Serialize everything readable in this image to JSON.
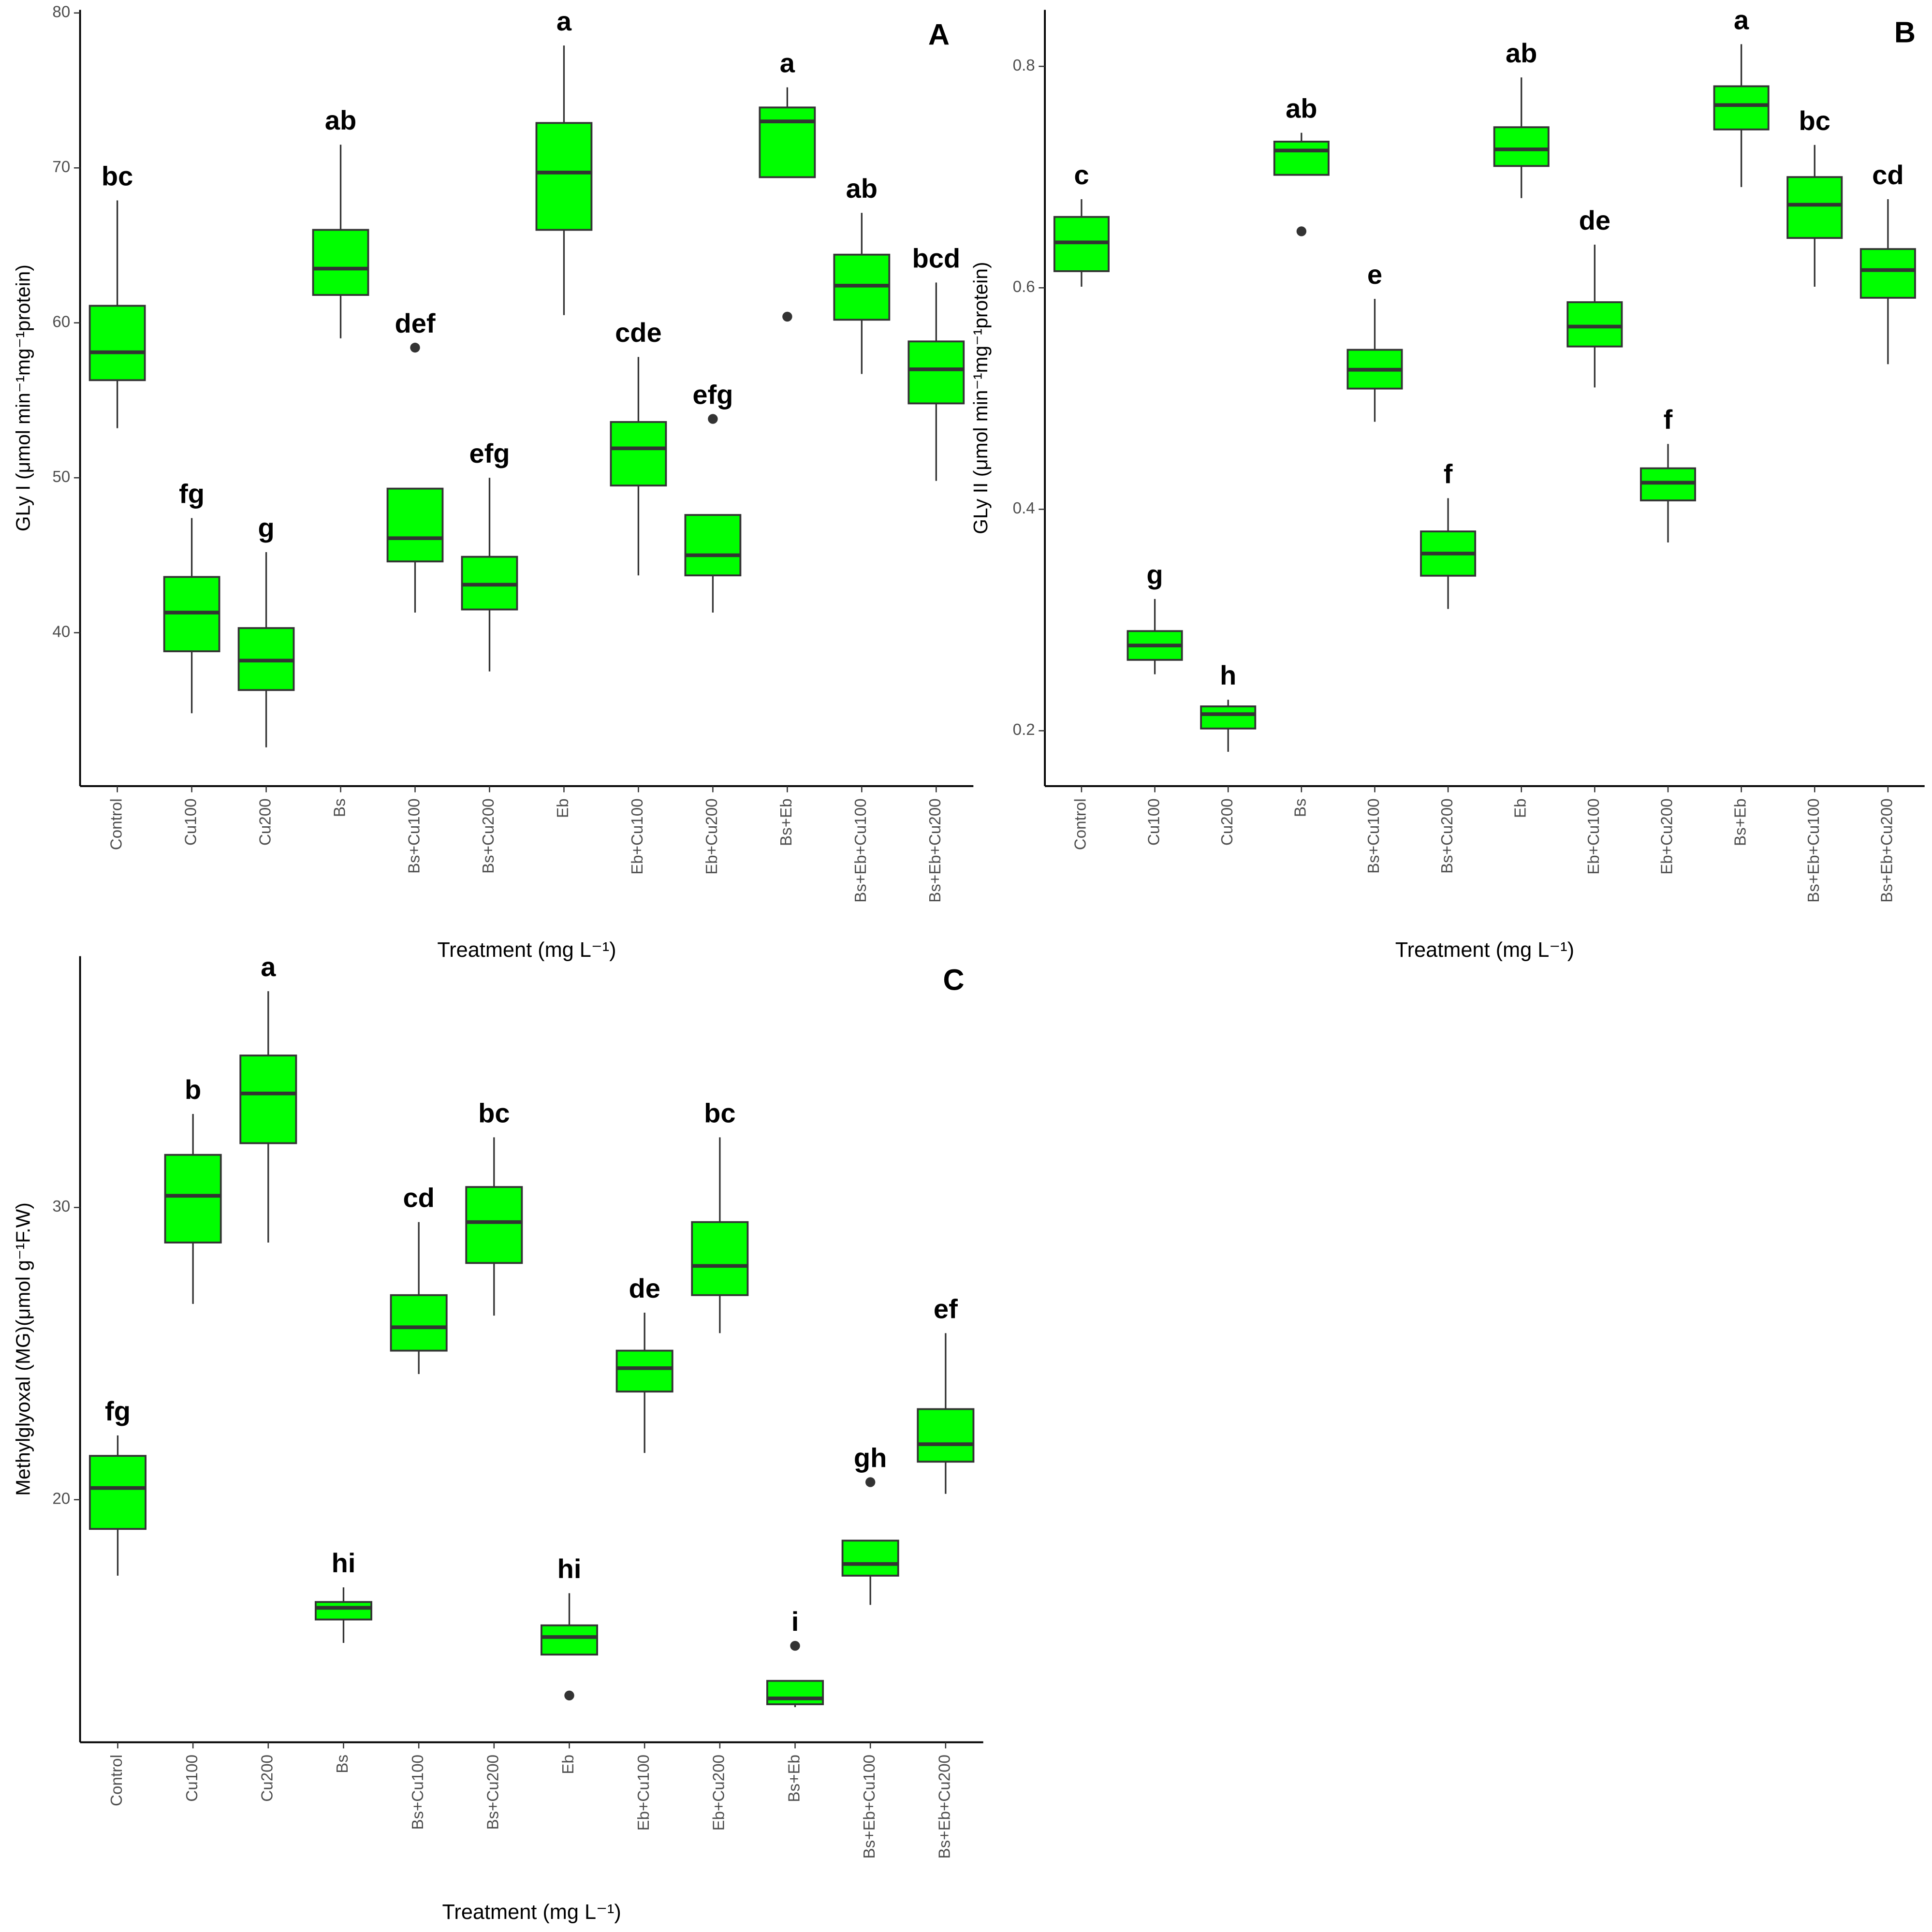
{
  "chart_data": [
    {
      "type": "box",
      "panel": "A",
      "x_label": "Treatment (mg L⁻¹)",
      "y_label": "GLy I (μmol min⁻¹mg⁻¹protein)",
      "color": "#00ff00",
      "categories": [
        "Control",
        "Cu100",
        "Cu200",
        "Bs",
        "Bs+Cu100",
        "Bs+Cu200",
        "Eb",
        "Eb+Cu100",
        "Eb+Cu200",
        "Bs+Eb",
        "Bs+Eb+Cu100",
        "Bs+Eb+Cu200"
      ],
      "boxes": [
        {
          "min": 53.2,
          "q1": 56.3,
          "median": 58.1,
          "q3": 61.1,
          "max": 67.9,
          "outliers": []
        },
        {
          "min": 34.8,
          "q1": 38.8,
          "median": 41.3,
          "q3": 43.6,
          "max": 47.4,
          "outliers": []
        },
        {
          "min": 32.6,
          "q1": 36.3,
          "median": 38.2,
          "q3": 40.3,
          "max": 45.2,
          "outliers": []
        },
        {
          "min": 59.0,
          "q1": 61.8,
          "median": 63.5,
          "q3": 66.0,
          "max": 71.5,
          "outliers": []
        },
        {
          "min": 41.3,
          "q1": 44.6,
          "median": 46.1,
          "q3": 49.3,
          "max": 49.3,
          "outliers": [
            58.4
          ]
        },
        {
          "min": 37.5,
          "q1": 41.5,
          "median": 43.1,
          "q3": 44.9,
          "max": 50.0,
          "outliers": []
        },
        {
          "min": 60.5,
          "q1": 66.0,
          "median": 69.7,
          "q3": 72.9,
          "max": 77.9,
          "outliers": []
        },
        {
          "min": 43.7,
          "q1": 49.5,
          "median": 51.9,
          "q3": 53.6,
          "max": 57.8,
          "outliers": []
        },
        {
          "min": 41.3,
          "q1": 43.7,
          "median": 45.0,
          "q3": 47.6,
          "max": 47.6,
          "outliers": [
            53.8
          ]
        },
        {
          "min": 69.4,
          "q1": 69.4,
          "median": 73.0,
          "q3": 73.9,
          "max": 75.2,
          "outliers": [
            60.4
          ]
        },
        {
          "min": 56.7,
          "q1": 60.2,
          "median": 62.4,
          "q3": 64.4,
          "max": 67.1,
          "outliers": []
        },
        {
          "min": 49.8,
          "q1": 54.8,
          "median": 57.0,
          "q3": 58.8,
          "max": 62.6,
          "outliers": []
        }
      ],
      "letters": [
        "bc",
        "fg",
        "g",
        "ab",
        "def",
        "efg",
        "a",
        "cde",
        "efg",
        "a",
        "ab",
        "bcd"
      ],
      "ylim": [
        30.1,
        80.2
      ],
      "yticks": [
        40,
        50,
        60,
        70,
        80
      ]
    },
    {
      "type": "box",
      "panel": "B",
      "x_label": "Treatment (mg L⁻¹)",
      "y_label": "GLy II (μmol min⁻¹mg⁻¹protein)",
      "color": "#00ff00",
      "categories": [
        "Control",
        "Cu100",
        "Cu200",
        "Bs",
        "Bs+Cu100",
        "Bs+Cu200",
        "Eb",
        "Eb+Cu100",
        "Eb+Cu200",
        "Bs+Eb",
        "Bs+Eb+Cu100",
        "Bs+Eb+Cu200"
      ],
      "boxes": [
        {
          "min": 0.601,
          "q1": 0.615,
          "median": 0.641,
          "q3": 0.664,
          "max": 0.68,
          "outliers": []
        },
        {
          "min": 0.251,
          "q1": 0.264,
          "median": 0.277,
          "q3": 0.29,
          "max": 0.319,
          "outliers": []
        },
        {
          "min": 0.181,
          "q1": 0.202,
          "median": 0.215,
          "q3": 0.222,
          "max": 0.228,
          "outliers": []
        },
        {
          "min": 0.702,
          "q1": 0.702,
          "median": 0.724,
          "q3": 0.732,
          "max": 0.74,
          "outliers": [
            0.651
          ]
        },
        {
          "min": 0.479,
          "q1": 0.509,
          "median": 0.526,
          "q3": 0.544,
          "max": 0.59,
          "outliers": []
        },
        {
          "min": 0.31,
          "q1": 0.34,
          "median": 0.36,
          "q3": 0.38,
          "max": 0.41,
          "outliers": []
        },
        {
          "min": 0.681,
          "q1": 0.71,
          "median": 0.725,
          "q3": 0.745,
          "max": 0.79,
          "outliers": []
        },
        {
          "min": 0.51,
          "q1": 0.547,
          "median": 0.565,
          "q3": 0.587,
          "max": 0.639,
          "outliers": []
        },
        {
          "min": 0.37,
          "q1": 0.408,
          "median": 0.424,
          "q3": 0.437,
          "max": 0.459,
          "outliers": []
        },
        {
          "min": 0.691,
          "q1": 0.743,
          "median": 0.765,
          "q3": 0.782,
          "max": 0.82,
          "outliers": []
        },
        {
          "min": 0.601,
          "q1": 0.645,
          "median": 0.675,
          "q3": 0.7,
          "max": 0.729,
          "outliers": []
        },
        {
          "min": 0.531,
          "q1": 0.591,
          "median": 0.616,
          "q3": 0.635,
          "max": 0.68,
          "outliers": []
        }
      ],
      "letters": [
        "c",
        "g",
        "h",
        "ab",
        "e",
        "f",
        "ab",
        "de",
        "f",
        "a",
        "bc",
        "cd"
      ],
      "ylim": [
        0.15,
        0.851
      ],
      "yticks": [
        0.2,
        0.4,
        0.6,
        0.8
      ]
    },
    {
      "type": "box",
      "panel": "C",
      "x_label": "Treatment (mg L⁻¹)",
      "y_label": "Methylglyoxal (MG)(μmol g⁻¹F.W)",
      "color": "#00ff00",
      "categories": [
        "Control",
        "Cu100",
        "Cu200",
        "Bs",
        "Bs+Cu100",
        "Bs+Cu200",
        "Eb",
        "Eb+Cu100",
        "Eb+Cu200",
        "Bs+Eb",
        "Bs+Eb+Cu100",
        "Bs+Eb+Cu200"
      ],
      "boxes": [
        {
          "min": 17.4,
          "q1": 19.0,
          "median": 20.4,
          "q3": 21.5,
          "max": 22.2,
          "outliers": []
        },
        {
          "min": 26.7,
          "q1": 28.8,
          "median": 30.4,
          "q3": 31.8,
          "max": 33.2,
          "outliers": []
        },
        {
          "min": 28.8,
          "q1": 32.2,
          "median": 33.9,
          "q3": 35.2,
          "max": 37.4,
          "outliers": []
        },
        {
          "min": 15.1,
          "q1": 15.9,
          "median": 16.3,
          "q3": 16.5,
          "max": 17.0,
          "outliers": []
        },
        {
          "min": 24.3,
          "q1": 25.1,
          "median": 25.9,
          "q3": 27.0,
          "max": 29.5,
          "outliers": []
        },
        {
          "min": 26.3,
          "q1": 28.1,
          "median": 29.5,
          "q3": 30.7,
          "max": 32.4,
          "outliers": []
        },
        {
          "min": 14.7,
          "q1": 14.7,
          "median": 15.3,
          "q3": 15.7,
          "max": 16.8,
          "outliers": [
            13.3
          ]
        },
        {
          "min": 21.6,
          "q1": 23.7,
          "median": 24.5,
          "q3": 25.1,
          "max": 26.4,
          "outliers": []
        },
        {
          "min": 25.7,
          "q1": 27.0,
          "median": 28.0,
          "q3": 29.5,
          "max": 32.4,
          "outliers": []
        },
        {
          "min": 12.9,
          "q1": 13.0,
          "median": 13.2,
          "q3": 13.8,
          "max": 13.8,
          "outliers": [
            15.0
          ]
        },
        {
          "min": 16.4,
          "q1": 17.4,
          "median": 17.8,
          "q3": 18.6,
          "max": 18.6,
          "outliers": [
            20.6
          ]
        },
        {
          "min": 20.2,
          "q1": 21.3,
          "median": 21.9,
          "q3": 23.1,
          "max": 25.7,
          "outliers": []
        }
      ],
      "letters": [
        "fg",
        "b",
        "a",
        "hi",
        "cd",
        "bc",
        "hi",
        "de",
        "bc",
        "i",
        "gh",
        "ef"
      ],
      "ylim": [
        11.7,
        38.6
      ],
      "yticks": [
        20,
        30
      ]
    }
  ]
}
